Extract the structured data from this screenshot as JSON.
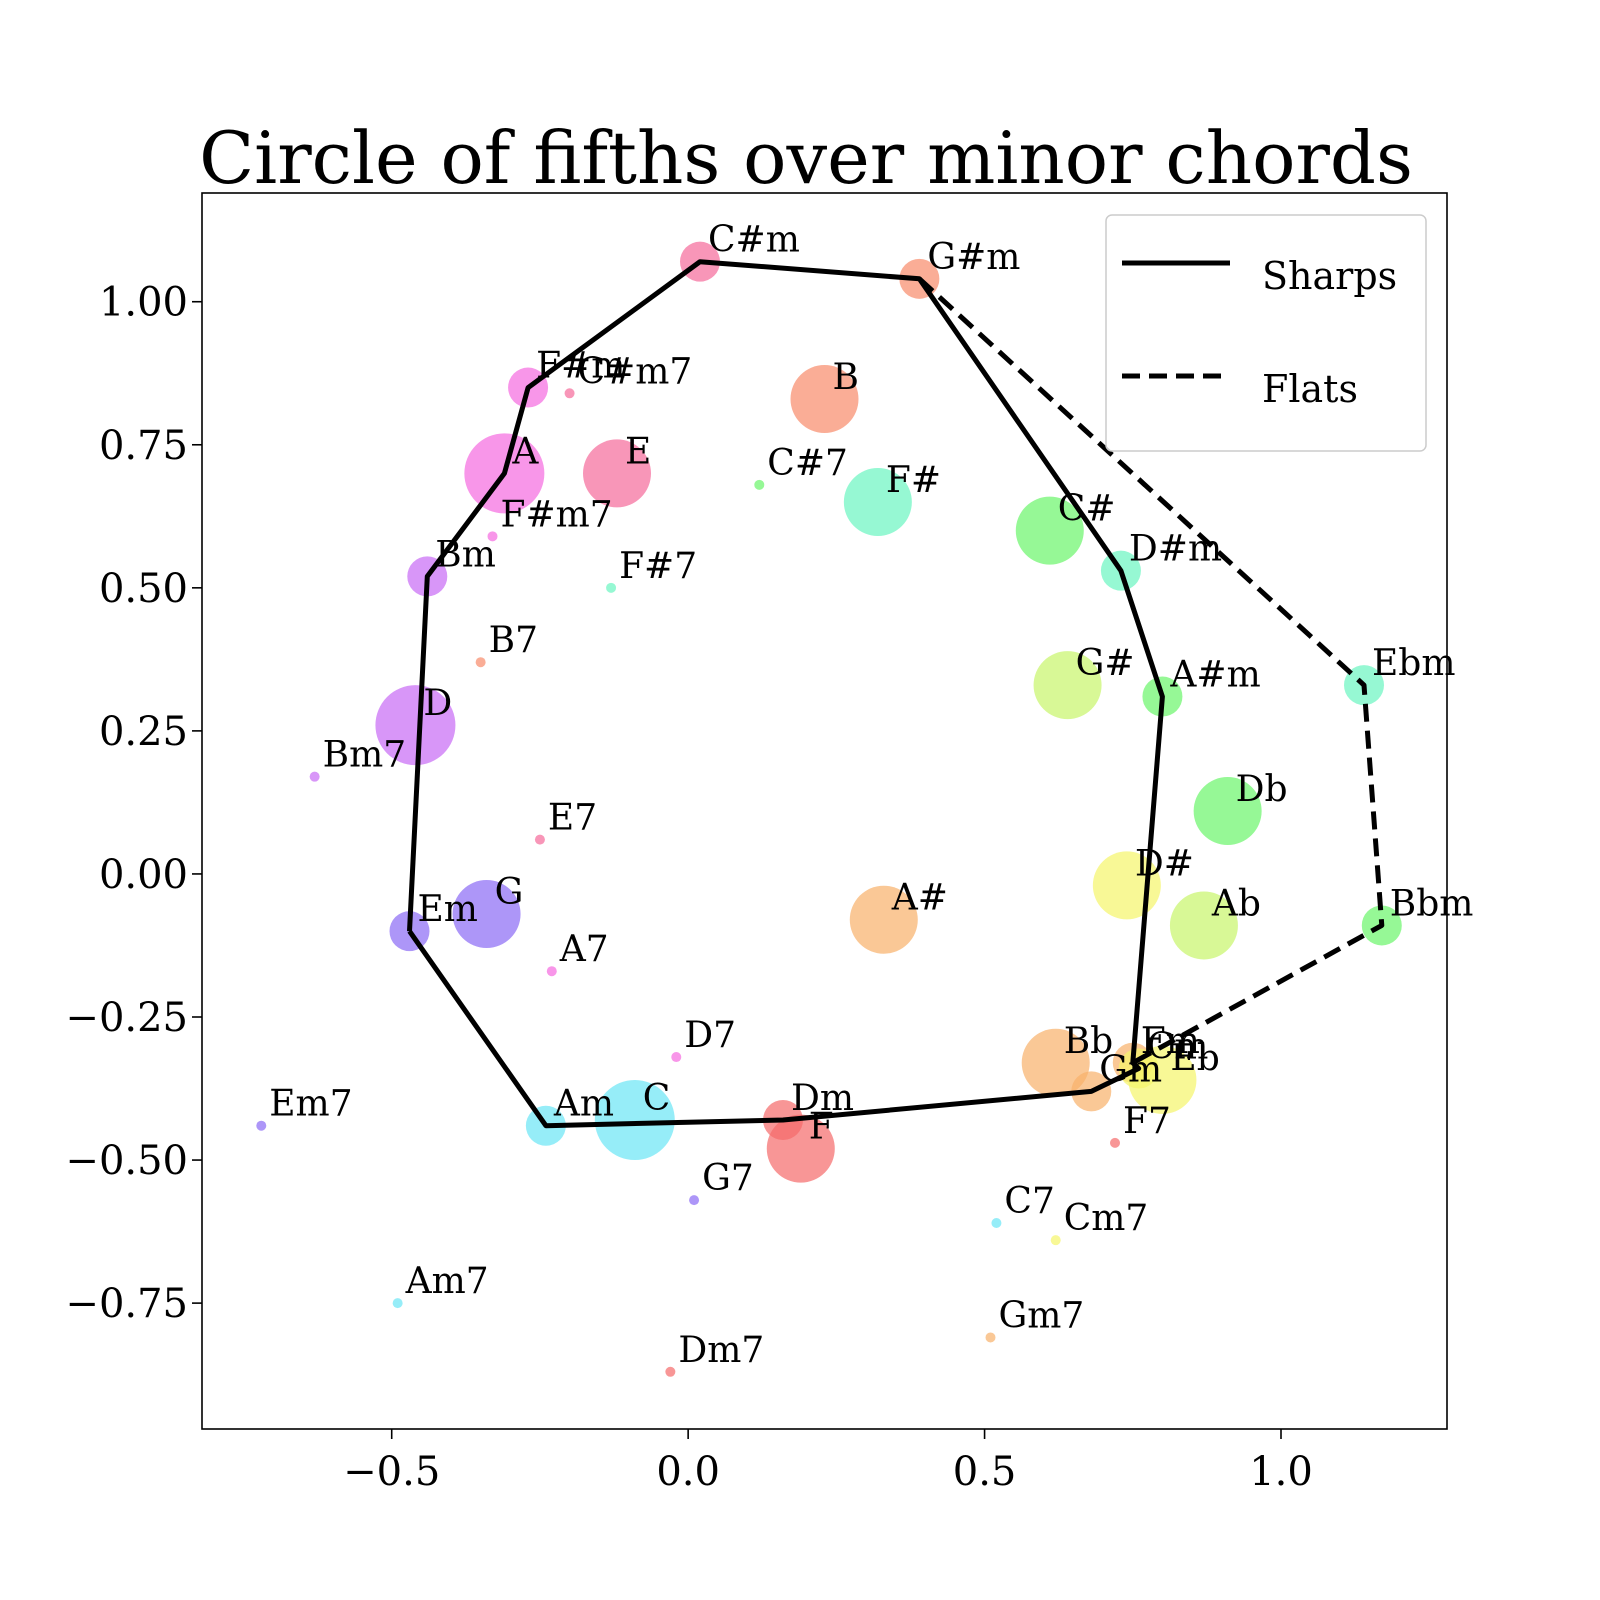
{
  "chart_data": {
    "type": "scatter",
    "title": "Circle of fifths over minor chords",
    "xlabel": "",
    "ylabel": "",
    "xlim": [
      -0.82,
      1.28
    ],
    "ylim": [
      -0.97,
      1.19
    ],
    "x_ticks": [
      -0.5,
      0.0,
      0.5,
      1.0
    ],
    "x_tick_labels": [
      "−0.5",
      "0.0",
      "0.5",
      "1.0"
    ],
    "y_ticks": [
      1.0,
      0.75,
      0.5,
      0.25,
      0.0,
      -0.25,
      -0.5,
      -0.75
    ],
    "y_tick_labels": [
      "1.00",
      "0.75",
      "0.50",
      "0.25",
      "0.00",
      "−0.25",
      "−0.50",
      "−0.75"
    ],
    "grid": false,
    "legend_position": "top-right",
    "points": [
      {
        "label": "C#m",
        "x": 0.02,
        "y": 1.07,
        "size": "m",
        "color": "#f56a9a"
      },
      {
        "label": "G#m",
        "x": 0.39,
        "y": 1.04,
        "size": "m",
        "color": "#f88a6a"
      },
      {
        "label": "C#m7",
        "x": -0.2,
        "y": 0.84,
        "size": "s",
        "color": "#f56a9a"
      },
      {
        "label": "F#m",
        "x": -0.27,
        "y": 0.85,
        "size": "m",
        "color": "#f56ae0"
      },
      {
        "label": "B",
        "x": 0.23,
        "y": 0.83,
        "size": "l",
        "color": "#f88a6a"
      },
      {
        "label": "A",
        "x": -0.31,
        "y": 0.7,
        "size": "xl",
        "color": "#f56ae0"
      },
      {
        "label": "E",
        "x": -0.12,
        "y": 0.7,
        "size": "l",
        "color": "#f56a9a"
      },
      {
        "label": "C#7",
        "x": 0.12,
        "y": 0.68,
        "size": "s",
        "color": "#6af56a"
      },
      {
        "label": "F#",
        "x": 0.32,
        "y": 0.65,
        "size": "l",
        "color": "#6af5c0"
      },
      {
        "label": "F#m7",
        "x": -0.33,
        "y": 0.59,
        "size": "s",
        "color": "#f56ae0"
      },
      {
        "label": "C#",
        "x": 0.61,
        "y": 0.6,
        "size": "l",
        "color": "#6af56a"
      },
      {
        "label": "D#m",
        "x": 0.73,
        "y": 0.53,
        "size": "m",
        "color": "#6af5c0"
      },
      {
        "label": "Bm",
        "x": -0.44,
        "y": 0.52,
        "size": "m",
        "color": "#c86af5"
      },
      {
        "label": "F#7",
        "x": -0.13,
        "y": 0.5,
        "size": "s",
        "color": "#6af5c0"
      },
      {
        "label": "B7",
        "x": -0.35,
        "y": 0.37,
        "size": "s",
        "color": "#f88a6a"
      },
      {
        "label": "G#",
        "x": 0.64,
        "y": 0.33,
        "size": "l",
        "color": "#c8f56a"
      },
      {
        "label": "A#m",
        "x": 0.8,
        "y": 0.31,
        "size": "m",
        "color": "#6af56a"
      },
      {
        "label": "Ebm",
        "x": 1.14,
        "y": 0.33,
        "size": "m",
        "color": "#6af5c0"
      },
      {
        "label": "D",
        "x": -0.46,
        "y": 0.26,
        "size": "xl",
        "color": "#c86af5"
      },
      {
        "label": "Bm7",
        "x": -0.63,
        "y": 0.17,
        "size": "s",
        "color": "#c86af5"
      },
      {
        "label": "Db",
        "x": 0.91,
        "y": 0.11,
        "size": "l",
        "color": "#6af56a"
      },
      {
        "label": "E7",
        "x": -0.25,
        "y": 0.06,
        "size": "s",
        "color": "#f56a9a"
      },
      {
        "label": "D#",
        "x": 0.74,
        "y": -0.02,
        "size": "l",
        "color": "#f5f56a"
      },
      {
        "label": "G",
        "x": -0.34,
        "y": -0.07,
        "size": "l",
        "color": "#8a6af5"
      },
      {
        "label": "A#",
        "x": 0.33,
        "y": -0.08,
        "size": "l",
        "color": "#f8b06a"
      },
      {
        "label": "Ab",
        "x": 0.87,
        "y": -0.09,
        "size": "l",
        "color": "#c8f56a"
      },
      {
        "label": "Bbm",
        "x": 1.17,
        "y": -0.09,
        "size": "m",
        "color": "#6af56a"
      },
      {
        "label": "Em",
        "x": -0.47,
        "y": -0.1,
        "size": "m",
        "color": "#8a6af5"
      },
      {
        "label": "A7",
        "x": -0.23,
        "y": -0.17,
        "size": "s",
        "color": "#f56ae0"
      },
      {
        "label": "D7",
        "x": -0.02,
        "y": -0.32,
        "size": "s",
        "color": "#f56ae0"
      },
      {
        "label": "Bb",
        "x": 0.62,
        "y": -0.33,
        "size": "l",
        "color": "#f8b06a"
      },
      {
        "label": "Fm",
        "x": 0.75,
        "y": -0.33,
        "size": "m",
        "color": "#f8b06a"
      },
      {
        "label": "Cm",
        "x": 0.76,
        "y": -0.34,
        "size": "m",
        "color": "#f5f56a"
      },
      {
        "label": "Eb",
        "x": 0.8,
        "y": -0.36,
        "size": "l",
        "color": "#f5f56a"
      },
      {
        "label": "Gm",
        "x": 0.68,
        "y": -0.38,
        "size": "m",
        "color": "#f8b06a"
      },
      {
        "label": "Am",
        "x": -0.24,
        "y": -0.44,
        "size": "m",
        "color": "#6ae6f5"
      },
      {
        "label": "C",
        "x": -0.09,
        "y": -0.43,
        "size": "xl",
        "color": "#6ae6f5"
      },
      {
        "label": "Dm",
        "x": 0.16,
        "y": -0.43,
        "size": "m",
        "color": "#f56a6a"
      },
      {
        "label": "F",
        "x": 0.19,
        "y": -0.48,
        "size": "l",
        "color": "#f56a6a"
      },
      {
        "label": "Em7",
        "x": -0.72,
        "y": -0.44,
        "size": "s",
        "color": "#8a6af5"
      },
      {
        "label": "F7",
        "x": 0.72,
        "y": -0.47,
        "size": "s",
        "color": "#f56a6a"
      },
      {
        "label": "G7",
        "x": 0.01,
        "y": -0.57,
        "size": "s",
        "color": "#8a6af5"
      },
      {
        "label": "C7",
        "x": 0.52,
        "y": -0.61,
        "size": "s",
        "color": "#6ae6f5"
      },
      {
        "label": "Cm7",
        "x": 0.62,
        "y": -0.64,
        "size": "s",
        "color": "#f5f56a"
      },
      {
        "label": "Am7",
        "x": -0.49,
        "y": -0.75,
        "size": "s",
        "color": "#6ae6f5"
      },
      {
        "label": "Gm7",
        "x": 0.51,
        "y": -0.81,
        "size": "s",
        "color": "#f8b06a"
      },
      {
        "label": "Dm7",
        "x": -0.03,
        "y": -0.87,
        "size": "s",
        "color": "#f56a6a"
      }
    ],
    "series": [
      {
        "name": "Sharps",
        "style": "solid",
        "x": [
          -0.47,
          -0.44,
          -0.31,
          -0.27,
          0.02,
          0.39,
          0.73,
          0.8,
          0.75,
          0.76,
          0.68,
          0.16,
          -0.24,
          -0.47
        ],
        "y": [
          -0.1,
          0.52,
          0.7,
          0.85,
          1.07,
          1.04,
          0.53,
          0.31,
          -0.33,
          -0.34,
          -0.38,
          -0.43,
          -0.44,
          -0.1
        ]
      },
      {
        "name": "Flats",
        "style": "dashed",
        "x": [
          0.39,
          1.14,
          1.17,
          0.75
        ],
        "y": [
          1.04,
          0.33,
          -0.09,
          -0.33
        ]
      }
    ]
  }
}
